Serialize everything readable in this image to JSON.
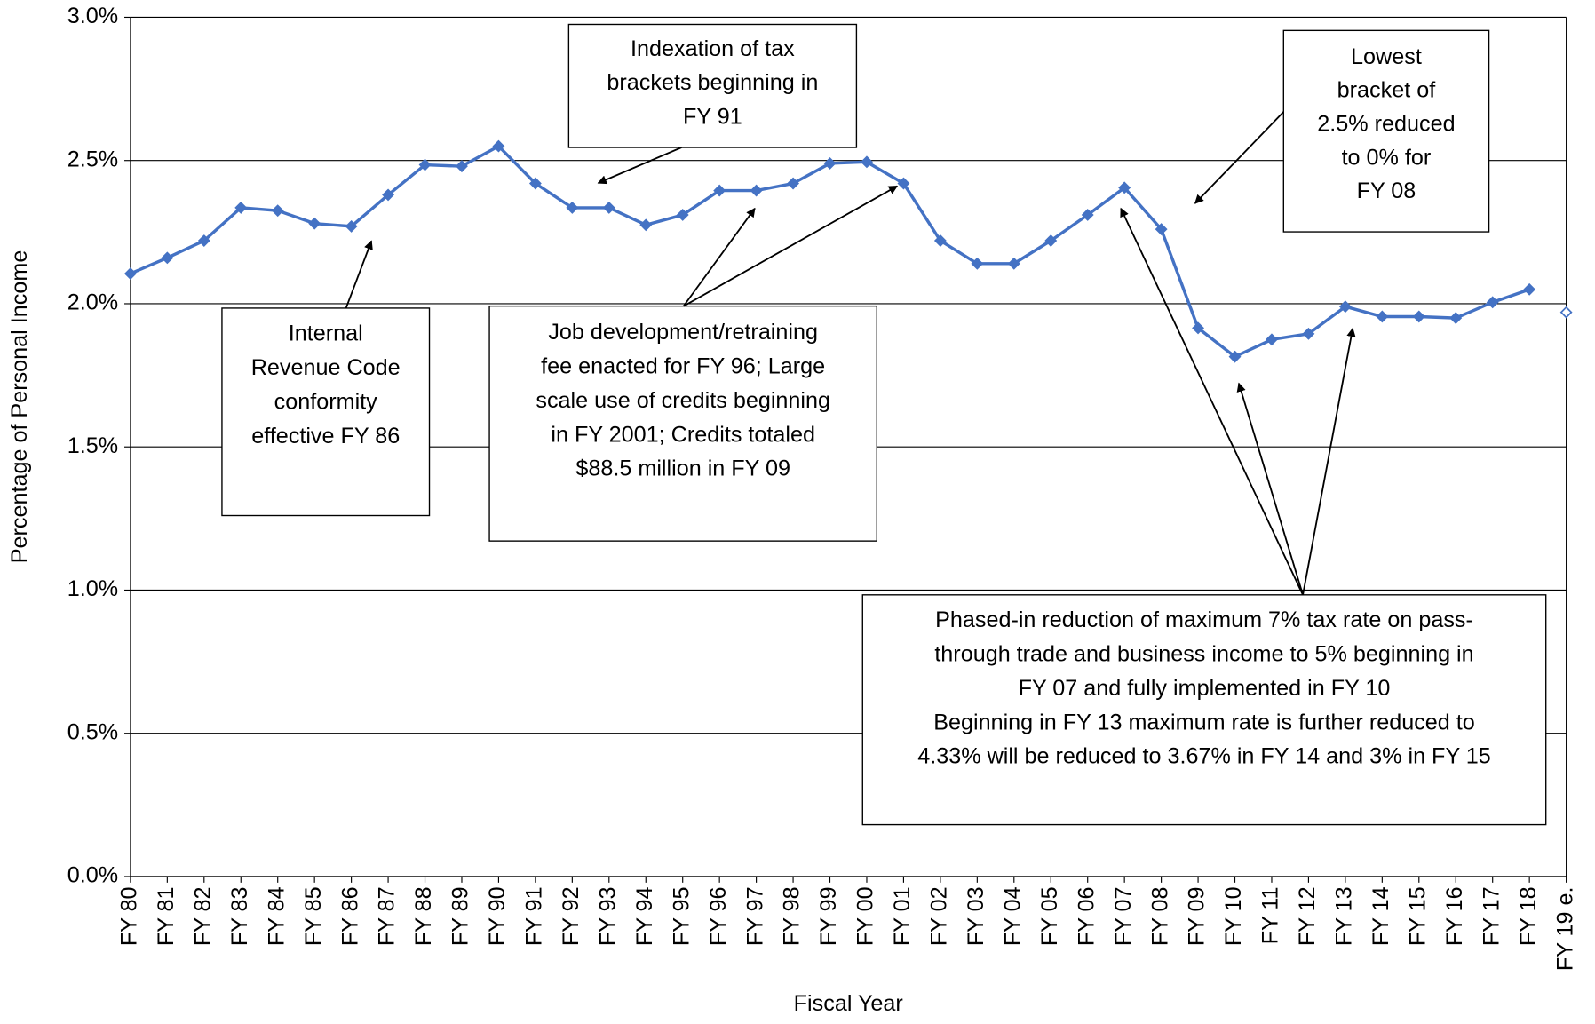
{
  "chart_data": {
    "type": "line",
    "y_label": "Percentage of Personal Income",
    "x_label": "Fiscal Year",
    "categories": [
      "FY 80",
      "FY 81",
      "FY 82",
      "FY 83",
      "FY 84",
      "FY 85",
      "FY 86",
      "FY 87",
      "FY 88",
      "FY 89",
      "FY 90",
      "FY 91",
      "FY 92",
      "FY 93",
      "FY 94",
      "FY 95",
      "FY 96",
      "FY 97",
      "FY 98",
      "FY 99",
      "FY 00",
      "FY 01",
      "FY 02",
      "FY 03",
      "FY 04",
      "FY 05",
      "FY 06",
      "FY 07",
      "FY 08",
      "FY 09",
      "FY 10",
      "FY 11",
      "FY 12",
      "FY 13",
      "FY 14",
      "FY 15",
      "FY 16",
      "FY 17",
      "FY 18",
      "FY 19 e."
    ],
    "series": [
      {
        "color": "#4472c4",
        "marker": "filled",
        "values": [
          2.105,
          2.16,
          2.22,
          2.335,
          2.325,
          2.28,
          2.27,
          2.38,
          2.485,
          2.48,
          2.55,
          2.42,
          2.335,
          2.335,
          2.275,
          2.31,
          2.395,
          2.395,
          2.42,
          2.49,
          2.495,
          2.42,
          2.22,
          2.14,
          2.14,
          2.22,
          2.31,
          2.405,
          2.26,
          1.915,
          1.815,
          1.875,
          1.895,
          1.99,
          1.955,
          1.955,
          1.95,
          2.005,
          2.05,
          null
        ]
      },
      {
        "color": "#4472c4",
        "marker": "hollow",
        "values": [
          null,
          null,
          null,
          null,
          null,
          null,
          null,
          null,
          null,
          null,
          null,
          null,
          null,
          null,
          null,
          null,
          null,
          null,
          null,
          null,
          null,
          null,
          null,
          null,
          null,
          null,
          null,
          null,
          null,
          null,
          null,
          null,
          null,
          null,
          null,
          null,
          null,
          null,
          null,
          1.97
        ]
      }
    ],
    "ylim": [
      0,
      3
    ],
    "yticks": [
      {
        "value": 0,
        "label": "0.0%"
      },
      {
        "value": 0.5,
        "label": "0.5%"
      },
      {
        "value": 1,
        "label": "1.0%"
      },
      {
        "value": 1.5,
        "label": "1.5%"
      },
      {
        "value": 2,
        "label": "2.0%"
      },
      {
        "value": 2.5,
        "label": "2.5%"
      },
      {
        "value": 3,
        "label": "3.0%"
      }
    ],
    "grid": true,
    "annotations": [
      {
        "lines": [
          "Indexation of tax",
          "brackets beginning in",
          "FY 91"
        ]
      },
      {
        "lines": [
          "Lowest",
          "bracket of",
          "2.5% reduced",
          "to 0% for",
          "FY 08"
        ]
      },
      {
        "lines": [
          "Internal",
          "Revenue Code",
          "conformity",
          "effective FY 86"
        ]
      },
      {
        "lines": [
          "Job development/retraining",
          "fee enacted for FY 96; Large",
          "scale use of credits beginning",
          "in FY 2001; Credits totaled",
          "$88.5 million in FY 09"
        ]
      },
      {
        "lines": [
          "Phased-in reduction of maximum 7% tax rate on pass-",
          "through trade and business income to 5% beginning in",
          "FY 07 and fully implemented in FY 10",
          "Beginning in FY 13 maximum rate is further reduced to",
          "4.33% will be reduced to 3.67% in FY 14 and 3% in FY 15"
        ]
      }
    ]
  }
}
